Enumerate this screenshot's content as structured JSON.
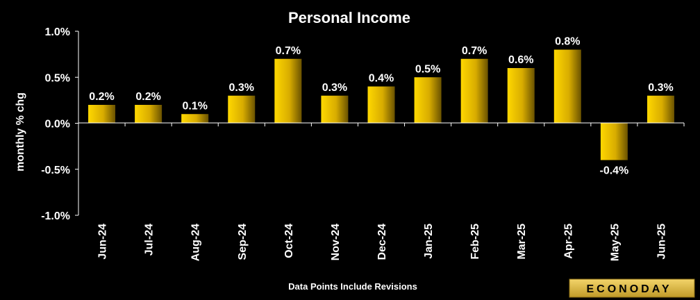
{
  "chart_data": {
    "type": "bar",
    "title": "Personal Income",
    "ylabel": "monthly % chg",
    "xlabel": "",
    "categories": [
      "Jun-24",
      "Jul-24",
      "Aug-24",
      "Sep-24",
      "Oct-24",
      "Nov-24",
      "Dec-24",
      "Jan-25",
      "Feb-25",
      "Mar-25",
      "Apr-25",
      "May-25",
      "Jun-25"
    ],
    "values": [
      0.2,
      0.2,
      0.1,
      0.3,
      0.7,
      0.3,
      0.4,
      0.5,
      0.7,
      0.6,
      0.8,
      -0.4,
      0.3
    ],
    "data_labels": [
      "0.2%",
      "0.2%",
      "0.1%",
      "0.3%",
      "0.7%",
      "0.3%",
      "0.4%",
      "0.5%",
      "0.7%",
      "0.6%",
      "0.8%",
      "-0.4%",
      "0.3%"
    ],
    "ylim": [
      -1.0,
      1.0
    ],
    "yticks": [
      1.0,
      0.5,
      0.0,
      -0.5,
      -1.0
    ],
    "ytick_labels": [
      "1.0%",
      "0.5%",
      "0.0%",
      "-0.5%",
      "-1.0%"
    ],
    "grid": false,
    "legend": "none",
    "bar_color": "#f0c000",
    "axis_color": "#ffffff",
    "background": "#000000"
  },
  "footnote": "Data Points Include Revisions",
  "logo": {
    "text": "ECONODAY"
  }
}
